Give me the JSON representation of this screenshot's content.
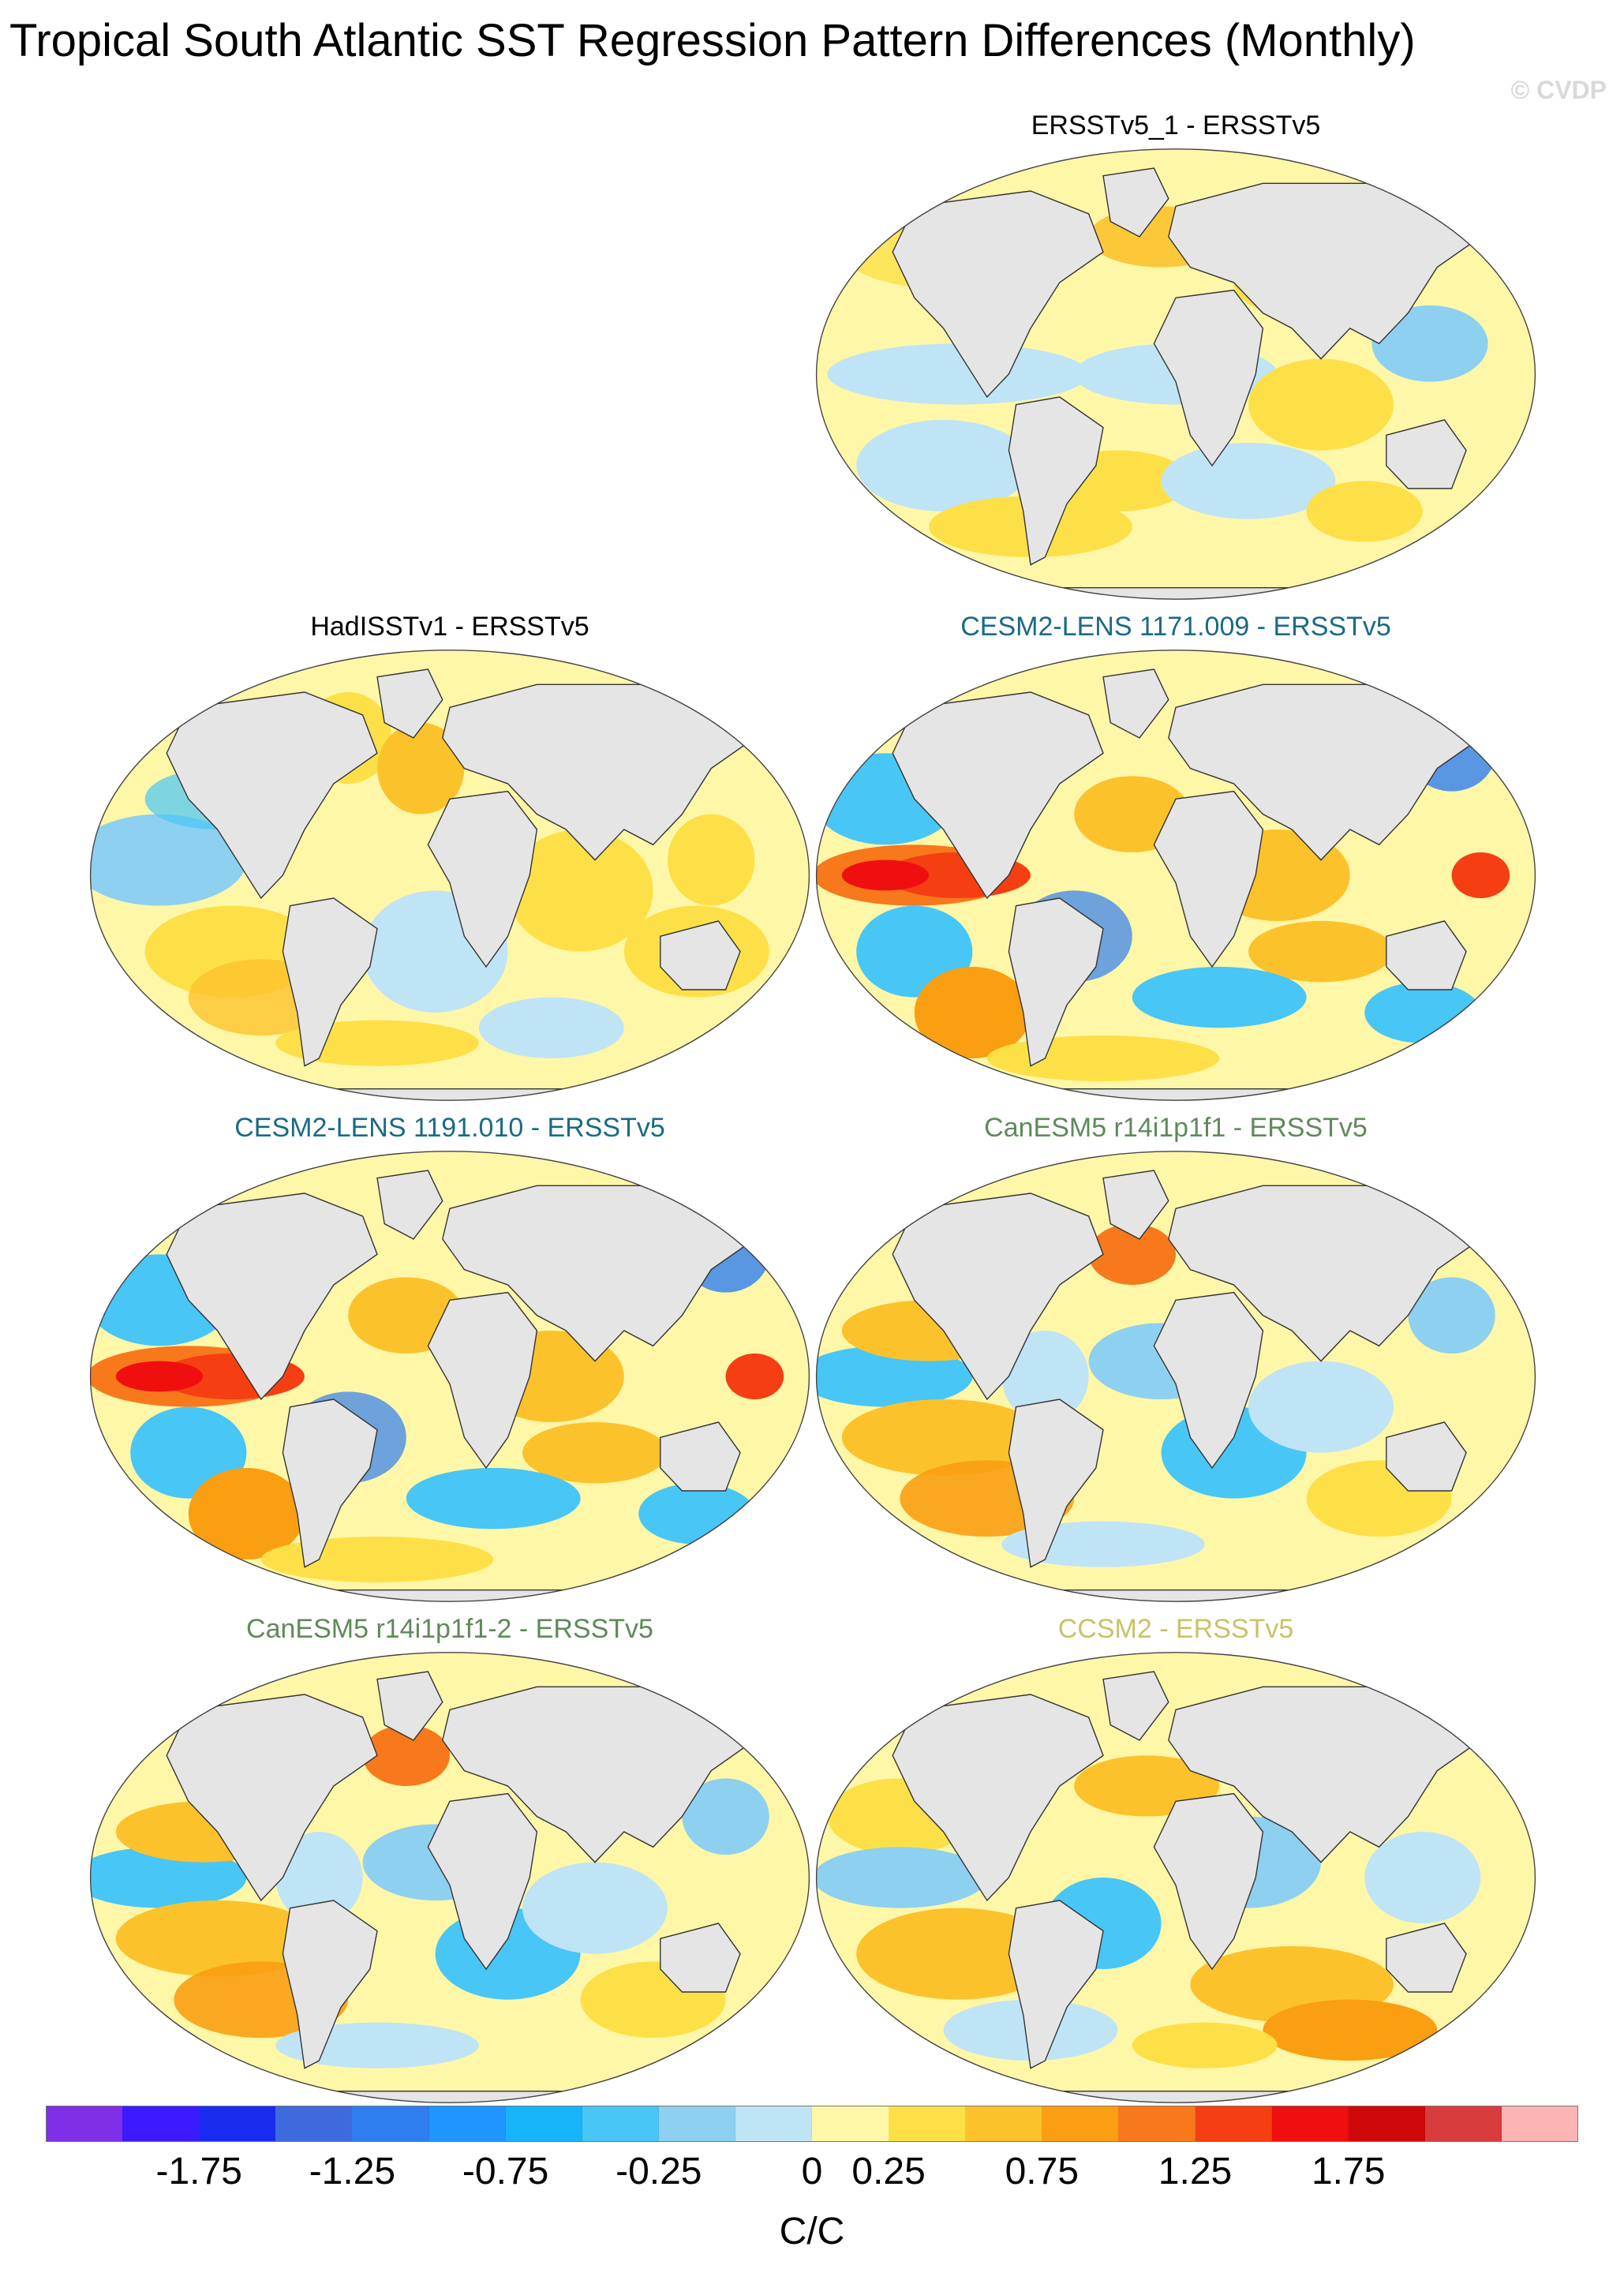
{
  "title": "Tropical South Atlantic SST Regression Pattern Differences (Monthly)",
  "watermark": "© CVDP",
  "panels": [
    {
      "label": "ERSSTv5_1 - ERSSTv5",
      "color": "#000000",
      "col": 1,
      "row": 0,
      "style": "mild"
    },
    {
      "label": "HadISSTv1 - ERSSTv5",
      "color": "#000000",
      "col": 0,
      "row": 1,
      "style": "noisy"
    },
    {
      "label": "CESM2-LENS 1171.009 - ERSSTv5",
      "color": "#1a6a85",
      "col": 1,
      "row": 1,
      "style": "enso"
    },
    {
      "label": "CESM2-LENS 1191.010 - ERSSTv5",
      "color": "#1a6a85",
      "col": 0,
      "row": 2,
      "style": "enso"
    },
    {
      "label": "CanESM5 r14i1p1f1 - ERSSTv5",
      "color": "#5f8a5a",
      "col": 1,
      "row": 2,
      "style": "can"
    },
    {
      "label": "CanESM5 r14i1p1f1-2 - ERSSTv5",
      "color": "#5f8a5a",
      "col": 0,
      "row": 3,
      "style": "can"
    },
    {
      "label": "CCSM2 - ERSSTv5",
      "color": "#c9c26a",
      "col": 1,
      "row": 3,
      "style": "ccsm"
    }
  ],
  "colorbar": {
    "colors": [
      "#7f2fe8",
      "#3b1aff",
      "#1a2bf0",
      "#3f6ade",
      "#2f7ef0",
      "#1f96ff",
      "#17b4fa",
      "#48c6f6",
      "#8ed0f0",
      "#bfe4f6",
      "#fff7a8",
      "#fde048",
      "#fcc22c",
      "#fa9e12",
      "#f8781c",
      "#f53e12",
      "#ef0f0f",
      "#cf0909",
      "#d83c3c",
      "#fdb4b4"
    ],
    "tick_labels": [
      "-1.75",
      "-1.25",
      "-0.75",
      "-0.25",
      "0",
      "0.25",
      "0.75",
      "1.25",
      "1.75"
    ],
    "units": "C/C"
  }
}
